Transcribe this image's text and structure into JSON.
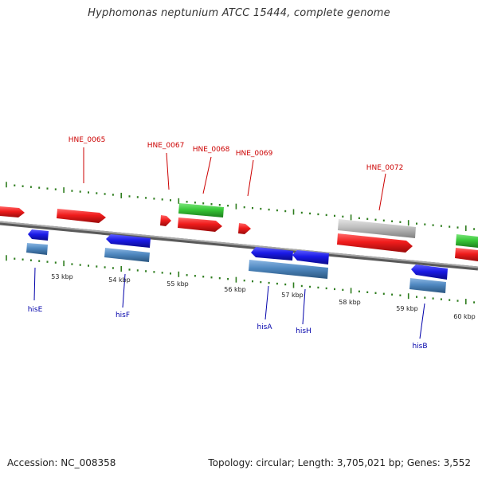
{
  "title": "Hyphomonas neptunium ATCC 15444, complete genome",
  "footer": {
    "accession": "Accession: NC_008358",
    "stats": "Topology: circular; Length: 3,705,021 bp; Genes: 3,552"
  },
  "colors": {
    "top_label": "#cc0000",
    "bottom_label": "#0000aa",
    "tick": "#2e7d1e",
    "backbone": "#8a8a8a",
    "gene_red": "#f01c1c",
    "gene_green": "#38c838",
    "gene_gray": "#bdbdbd",
    "gene_blue": "#1a1ae6",
    "gene_steel": "#4f88c0"
  },
  "scale_labels": [
    "53 kbp",
    "54 kbp",
    "55 kbp",
    "56 kbp",
    "57 kbp",
    "58 kbp",
    "59 kbp",
    "60 kbp"
  ],
  "top_genes": [
    "HNE_0065",
    "HNE_0067",
    "HNE_0068",
    "HNE_0069",
    "HNE_0072"
  ],
  "bottom_genes": [
    "hisE",
    "hisF",
    "hisA",
    "hisH",
    "hisB"
  ]
}
